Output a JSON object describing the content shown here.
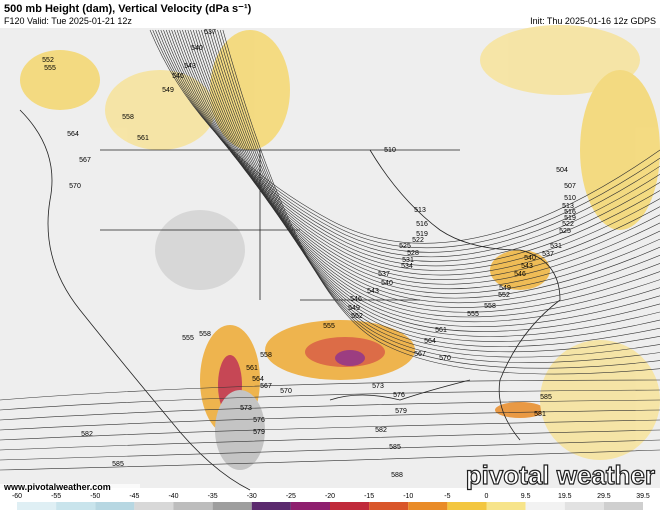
{
  "header": {
    "title": "500 mb Height (dam), Vertical Velocity (dPa s⁻¹)",
    "valid": "F120 Valid: Tue 2025-01-21 12z",
    "init": "Init: Thu 2025-01-16 12z GDPS"
  },
  "contour_labels": [
    537,
    540,
    543,
    546,
    549,
    552,
    555,
    558,
    561,
    564,
    567,
    570,
    510,
    504,
    507,
    513,
    516,
    519,
    522,
    525,
    528,
    531,
    534,
    537,
    540,
    543,
    546,
    549,
    552,
    555,
    558,
    561,
    564,
    567,
    570,
    573,
    576,
    579,
    582,
    585,
    588,
    561,
    564,
    567,
    570,
    573,
    576,
    579,
    582,
    585,
    585,
    581,
    555,
    558,
    549,
    552,
    555,
    558,
    510,
    513,
    516,
    519,
    522,
    525,
    531,
    537,
    540,
    543,
    546
  ],
  "legend": {
    "ticks": [
      -60,
      -55,
      -50,
      -45,
      -40,
      -35,
      -30,
      -25,
      -20,
      -15,
      -10,
      -5,
      0,
      9.5,
      19.5,
      29.5,
      39.5
    ],
    "colors": [
      "#dfeff4",
      "#c9e4ec",
      "#b7d7e2",
      "#d8d8d8",
      "#bdbdbd",
      "#9e9e9e",
      "#5b2a6e",
      "#8e1f6e",
      "#c02a3b",
      "#d9562a",
      "#e98b27",
      "#f3c640",
      "#f7e48a",
      "#f2f2f2",
      "#e2e2e2",
      "#cfcfcf"
    ]
  },
  "footer": {
    "url": "www.pivotalweather.com",
    "brand": "pivotal weather"
  }
}
